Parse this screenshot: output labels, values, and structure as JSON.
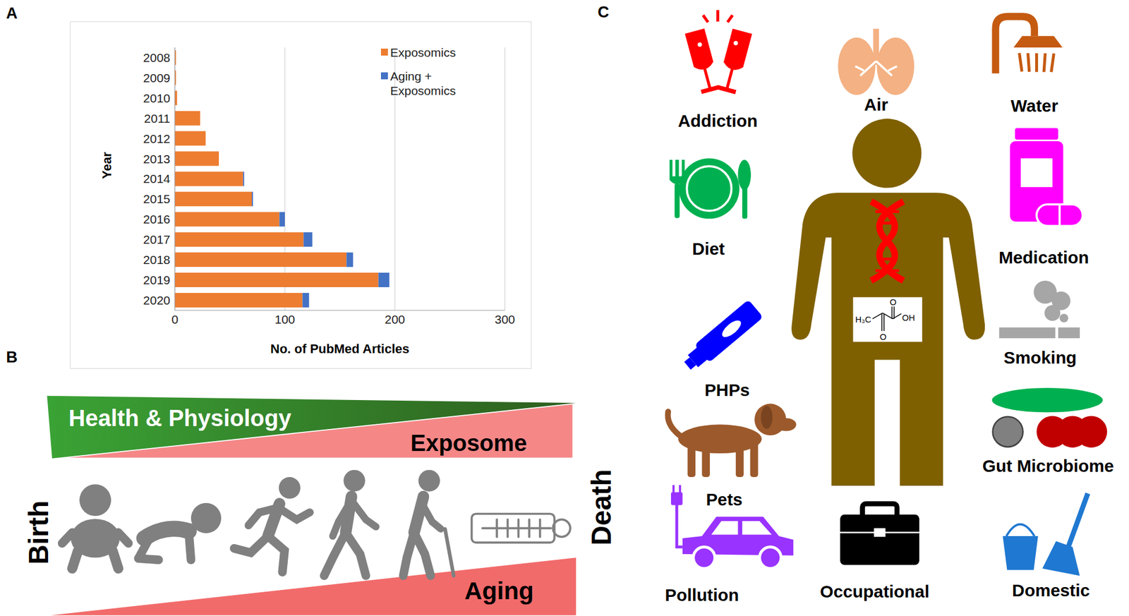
{
  "chart_data": {
    "type": "bar",
    "orientation": "horizontal",
    "stacked": true,
    "categories": [
      "2008",
      "2009",
      "2010",
      "2011",
      "2012",
      "2013",
      "2014",
      "2015",
      "2016",
      "2017",
      "2018",
      "2019",
      "2020"
    ],
    "series": [
      {
        "name": "Exposomics",
        "color": "#ED7D31",
        "values": [
          1,
          1,
          2,
          23,
          28,
          40,
          62,
          70,
          95,
          117,
          156,
          185,
          116
        ]
      },
      {
        "name": "Aging + Exposomics",
        "color": "#4472C4",
        "values": [
          0,
          0,
          0,
          0,
          0,
          0,
          1,
          1,
          5,
          8,
          6,
          10,
          6
        ]
      }
    ],
    "x_label": "No. of PubMed Articles",
    "y_label": "Year",
    "xlim": [
      0,
      300
    ],
    "xticks": [
      0,
      100,
      200,
      300
    ],
    "grid": true,
    "legend": "upper right"
  },
  "diagram": {
    "panel_labels": [
      "A",
      "B",
      "C"
    ],
    "lifespan": {
      "health": "Health & Physiology",
      "exposome": "Exposome",
      "aging": "Aging",
      "start": "Birth",
      "end": "Death"
    },
    "exposures": [
      "Addiction",
      "Air",
      "Water",
      "Diet",
      "Medication",
      "PHPs",
      "Smoking",
      "Pets",
      "Gut Microbiome",
      "Pollution",
      "Occupational",
      "Domestic"
    ],
    "chemical": {
      "methyl": "H₃C",
      "carbonyl_o": "O",
      "acid_o": "O",
      "hydroxyl": "OH"
    }
  }
}
